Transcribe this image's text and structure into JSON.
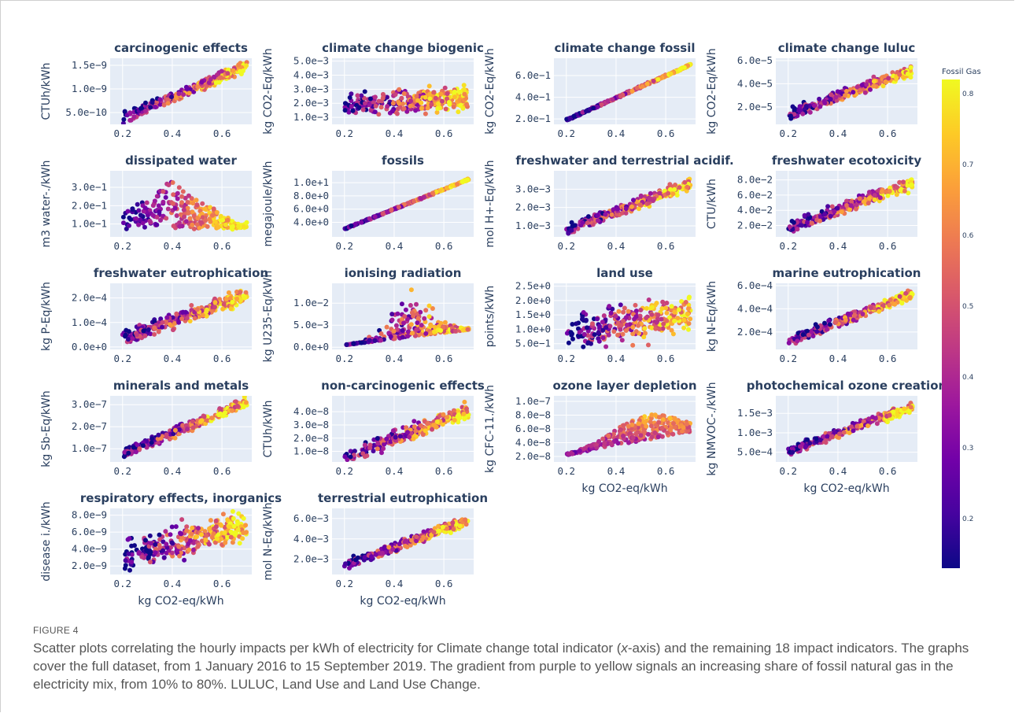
{
  "figure_label": "FIGURE 4",
  "caption": {
    "before_italic": "Scatter plots correlating the hourly impacts per kWh of electricity for Climate change total indicator (",
    "italic": "x",
    "after_italic": "-axis) and the remaining 18 impact indicators. The graphs cover the full dataset, from 1 January 2016 to 15 September 2019. The gradient from purple to yellow signals an increasing share of fossil natural gas in the electricity mix, from 10% to 80%. LULUC, Land Use and Land Use Change."
  },
  "colorbar": {
    "title": "Fossil Gas",
    "range": [
      0.13,
      0.82
    ],
    "ticks": [
      "0.2",
      "0.3",
      "0.4",
      "0.5",
      "0.6",
      "0.7",
      "0.8"
    ],
    "colorscale": [
      "#0d0887",
      "#46039f",
      "#7201a8",
      "#9c179e",
      "#bd3786",
      "#d8576b",
      "#ed7953",
      "#fb9f3a",
      "#fdca26",
      "#f0f921"
    ]
  },
  "x_axis_label": "kg CO2-eq/kWh",
  "chart_data": [
    {
      "type": "scatter",
      "title": "carcinogenic effects",
      "ylabel": "CTUh/kWh",
      "xlim": [
        0.15,
        0.72
      ],
      "ylim": [
        2.5e-10,
        1.65e-09
      ],
      "x_ticks": [
        0.2,
        0.4,
        0.6
      ],
      "y_ticks": [
        {
          "v": 5e-10,
          "label": "5.0e−10"
        },
        {
          "v": 1e-09,
          "label": "1.0e−9"
        },
        {
          "v": 1.5e-09,
          "label": "1.5e−9"
        }
      ],
      "pattern": "linear",
      "trend": [
        [
          0.2,
          3.5e-10
        ],
        [
          0.7,
          1.52e-09
        ]
      ],
      "spread": 9e-11
    },
    {
      "type": "scatter",
      "title": "climate change biogenic",
      "ylabel": "kg CO2-Eq/kWh",
      "xlim": [
        0.15,
        0.72
      ],
      "ylim": [
        0.0005,
        0.0052
      ],
      "x_ticks": [
        0.2,
        0.4,
        0.6
      ],
      "y_ticks": [
        {
          "v": 0.001,
          "label": "1.0e−3"
        },
        {
          "v": 0.002,
          "label": "2.0e−3"
        },
        {
          "v": 0.003,
          "label": "3.0e−3"
        },
        {
          "v": 0.004,
          "label": "4.0e−3"
        },
        {
          "v": 0.005,
          "label": "5.0e−3"
        }
      ],
      "pattern": "blob",
      "trend": [
        [
          0.2,
          0.0018
        ],
        [
          0.7,
          0.0024
        ]
      ],
      "spread": 0.0014
    },
    {
      "type": "scatter",
      "title": "climate change fossil",
      "ylabel": "kg CO2-Eq/kWh",
      "xlim": [
        0.15,
        0.72
      ],
      "ylim": [
        0.15,
        0.76
      ],
      "x_ticks": [
        0.2,
        0.4,
        0.6
      ],
      "y_ticks": [
        {
          "v": 0.2,
          "label": "2.0e−1"
        },
        {
          "v": 0.4,
          "label": "4.0e−1"
        },
        {
          "v": 0.6,
          "label": "6.0e−1"
        }
      ],
      "pattern": "line",
      "trend": [
        [
          0.2,
          0.19
        ],
        [
          0.7,
          0.7
        ]
      ],
      "spread": 0.004
    },
    {
      "type": "scatter",
      "title": "climate change luluc",
      "ylabel": "kg CO2-Eq/kWh",
      "xlim": [
        0.15,
        0.72
      ],
      "ylim": [
        5e-06,
        6.2e-05
      ],
      "x_ticks": [
        0.2,
        0.4,
        0.6
      ],
      "y_ticks": [
        {
          "v": 2e-05,
          "label": "2.0e−5"
        },
        {
          "v": 4e-05,
          "label": "4.0e−5"
        },
        {
          "v": 6e-05,
          "label": "6.0e−5"
        }
      ],
      "pattern": "linear",
      "trend": [
        [
          0.2,
          1.3e-05
        ],
        [
          0.7,
          5.3e-05
        ]
      ],
      "spread": 4e-06
    },
    {
      "type": "scatter",
      "title": "dissipated water",
      "ylabel": "m3 water-./kWh",
      "xlim": [
        0.15,
        0.72
      ],
      "ylim": [
        0.03,
        0.39
      ],
      "x_ticks": [
        0.2,
        0.4,
        0.6
      ],
      "y_ticks": [
        {
          "v": 0.1,
          "label": "1.0e−1"
        },
        {
          "v": 0.2,
          "label": "2.0e−1"
        },
        {
          "v": 0.3,
          "label": "3.0e−1"
        }
      ],
      "pattern": "triangle",
      "trend": [
        [
          0.2,
          0.16
        ],
        [
          0.7,
          0.1
        ]
      ],
      "spread": 0.12
    },
    {
      "type": "scatter",
      "title": "fossils",
      "ylabel": "megajoule/kWh",
      "xlim": [
        0.15,
        0.72
      ],
      "ylim": [
        1.8,
        11.8
      ],
      "x_ticks": [
        0.2,
        0.4,
        0.6
      ],
      "y_ticks": [
        {
          "v": 4,
          "label": "4.0e+0"
        },
        {
          "v": 6,
          "label": "6.0e+0"
        },
        {
          "v": 8,
          "label": "8.0e+0"
        },
        {
          "v": 10,
          "label": "1.0e+1"
        }
      ],
      "pattern": "line",
      "trend": [
        [
          0.2,
          3.0
        ],
        [
          0.7,
          10.5
        ]
      ],
      "spread": 0.05
    },
    {
      "type": "scatter",
      "title": "freshwater and terrestrial acidif.",
      "ylabel": "mol H+-Eq/kWh",
      "xlim": [
        0.15,
        0.72
      ],
      "ylim": [
        0.0004,
        0.004
      ],
      "x_ticks": [
        0.2,
        0.4,
        0.6
      ],
      "y_ticks": [
        {
          "v": 0.001,
          "label": "1.0e−3"
        },
        {
          "v": 0.002,
          "label": "2.0e−3"
        },
        {
          "v": 0.003,
          "label": "3.0e−3"
        }
      ],
      "pattern": "linear",
      "trend": [
        [
          0.2,
          0.0007
        ],
        [
          0.7,
          0.0034
        ]
      ],
      "spread": 0.00025
    },
    {
      "type": "scatter",
      "title": "freshwater ecotoxicity",
      "ylabel": "CTU/kWh",
      "xlim": [
        0.15,
        0.72
      ],
      "ylim": [
        0.005,
        0.092
      ],
      "x_ticks": [
        0.2,
        0.4,
        0.6
      ],
      "y_ticks": [
        {
          "v": 0.02,
          "label": "2.0e−2"
        },
        {
          "v": 0.04,
          "label": "4.0e−2"
        },
        {
          "v": 0.06,
          "label": "6.0e−2"
        },
        {
          "v": 0.08,
          "label": "8.0e−2"
        }
      ],
      "pattern": "linear",
      "trend": [
        [
          0.2,
          0.015
        ],
        [
          0.7,
          0.078
        ]
      ],
      "spread": 0.006
    },
    {
      "type": "scatter",
      "title": "freshwater eutrophication",
      "ylabel": "kg P-Eq/kWh",
      "xlim": [
        0.15,
        0.72
      ],
      "ylim": [
        -1e-05,
        0.00026
      ],
      "x_ticks": [
        0.2,
        0.4,
        0.6
      ],
      "y_ticks": [
        {
          "v": 0,
          "label": "0.0e+0"
        },
        {
          "v": 0.0001,
          "label": "1.0e−4"
        },
        {
          "v": 0.0002,
          "label": "2.0e−4"
        }
      ],
      "pattern": "linear",
      "trend": [
        [
          0.2,
          3e-05
        ],
        [
          0.7,
          0.00022
        ]
      ],
      "spread": 2.5e-05
    },
    {
      "type": "scatter",
      "title": "ionising radiation",
      "ylabel": "kg U235-Eq/kWh",
      "xlim": [
        0.15,
        0.72
      ],
      "ylim": [
        -0.0005,
        0.0145
      ],
      "x_ticks": [
        0.2,
        0.4,
        0.6
      ],
      "y_ticks": [
        {
          "v": 0,
          "label": "0.0e+0"
        },
        {
          "v": 0.005,
          "label": "5.0e−3"
        },
        {
          "v": 0.01,
          "label": "1.0e−2"
        }
      ],
      "pattern": "spike",
      "trend": [
        [
          0.2,
          0.0005
        ],
        [
          0.7,
          0.004
        ]
      ],
      "spread": 0.011
    },
    {
      "type": "scatter",
      "title": "land use",
      "ylabel": "points/kWh",
      "xlim": [
        0.15,
        0.72
      ],
      "ylim": [
        0.3,
        2.6
      ],
      "x_ticks": [
        0.2,
        0.4,
        0.6
      ],
      "y_ticks": [
        {
          "v": 0.5,
          "label": "5.0e−1"
        },
        {
          "v": 1.0,
          "label": "1.0e+0"
        },
        {
          "v": 1.5,
          "label": "1.5e+0"
        },
        {
          "v": 2.0,
          "label": "2.0e+0"
        },
        {
          "v": 2.5,
          "label": "2.5e+0"
        }
      ],
      "pattern": "blob",
      "trend": [
        [
          0.2,
          0.9
        ],
        [
          0.7,
          1.6
        ]
      ],
      "spread": 1.0
    },
    {
      "type": "scatter",
      "title": "marine eutrophication",
      "ylabel": "kg N-Eq/kWh",
      "xlim": [
        0.15,
        0.72
      ],
      "ylim": [
        5e-05,
        0.00062
      ],
      "x_ticks": [
        0.2,
        0.4,
        0.6
      ],
      "y_ticks": [
        {
          "v": 0.0002,
          "label": "2.0e−4"
        },
        {
          "v": 0.0004,
          "label": "4.0e−4"
        },
        {
          "v": 0.0006,
          "label": "6.0e−4"
        }
      ],
      "pattern": "linear",
      "trend": [
        [
          0.2,
          0.00011
        ],
        [
          0.7,
          0.00054
        ]
      ],
      "spread": 3.5e-05
    },
    {
      "type": "scatter",
      "title": "minerals and metals",
      "ylabel": "kg Sb-Eq/kWh",
      "xlim": [
        0.15,
        0.72
      ],
      "ylim": [
        4e-08,
        3.4e-07
      ],
      "x_ticks": [
        0.2,
        0.4,
        0.6
      ],
      "y_ticks": [
        {
          "v": 1e-07,
          "label": "1.0e−7"
        },
        {
          "v": 2e-07,
          "label": "2.0e−7"
        },
        {
          "v": 3e-07,
          "label": "3.0e−7"
        }
      ],
      "pattern": "linear",
      "trend": [
        [
          0.2,
          7e-08
        ],
        [
          0.7,
          3.2e-07
        ]
      ],
      "spread": 2e-08
    },
    {
      "type": "scatter",
      "title": "non-carcinogenic effects",
      "ylabel": "CTUh/kWh",
      "xlim": [
        0.15,
        0.72
      ],
      "ylim": [
        2e-09,
        5.2e-08
      ],
      "x_ticks": [
        0.2,
        0.4,
        0.6
      ],
      "y_ticks": [
        {
          "v": 1e-08,
          "label": "1.0e−8"
        },
        {
          "v": 2e-08,
          "label": "2.0e−8"
        },
        {
          "v": 3e-08,
          "label": "3.0e−8"
        },
        {
          "v": 4e-08,
          "label": "4.0e−8"
        }
      ],
      "pattern": "linear",
      "trend": [
        [
          0.2,
          4e-09
        ],
        [
          0.7,
          4.3e-08
        ]
      ],
      "spread": 5e-09
    },
    {
      "type": "scatter",
      "title": "ozone layer depletion",
      "ylabel": "kg CFC-11./kWh",
      "xlim": [
        0.15,
        0.72
      ],
      "ylim": [
        1.2e-08,
        1.08e-07
      ],
      "x_ticks": [
        0.2,
        0.4,
        0.6
      ],
      "y_ticks": [
        {
          "v": 2e-08,
          "label": "2.0e−8"
        },
        {
          "v": 4e-08,
          "label": "4.0e−8"
        },
        {
          "v": 6e-08,
          "label": "6.0e−8"
        },
        {
          "v": 8e-08,
          "label": "8.0e−8"
        },
        {
          "v": 1e-07,
          "label": "1.0e−7"
        }
      ],
      "pattern": "mound",
      "trend": [
        [
          0.2,
          2.8e-08
        ],
        [
          0.7,
          6.2e-08
        ]
      ],
      "spread": 3.6e-08
    },
    {
      "type": "scatter",
      "title": "photochemical ozone creation",
      "ylabel": "kg NMVOC-./kWh",
      "xlim": [
        0.15,
        0.72
      ],
      "ylim": [
        0.00025,
        0.00195
      ],
      "x_ticks": [
        0.2,
        0.4,
        0.6
      ],
      "y_ticks": [
        {
          "v": 0.0005,
          "label": "5.0e−4"
        },
        {
          "v": 0.001,
          "label": "1.0e−3"
        },
        {
          "v": 0.0015,
          "label": "1.5e−3"
        }
      ],
      "pattern": "linear",
      "trend": [
        [
          0.2,
          0.0005
        ],
        [
          0.7,
          0.0017
        ]
      ],
      "spread": 0.0001
    },
    {
      "type": "scatter",
      "title": "respiratory effects, inorganics",
      "ylabel": "disease i./kWh",
      "xlim": [
        0.15,
        0.72
      ],
      "ylim": [
        1e-09,
        8.8e-09
      ],
      "x_ticks": [
        0.2,
        0.4,
        0.6
      ],
      "y_ticks": [
        {
          "v": 2e-09,
          "label": "2.0e−9"
        },
        {
          "v": 4e-09,
          "label": "4.0e−9"
        },
        {
          "v": 6e-09,
          "label": "6.0e−9"
        },
        {
          "v": 8e-09,
          "label": "8.0e−9"
        }
      ],
      "pattern": "blob",
      "trend": [
        [
          0.2,
          3.2e-09
        ],
        [
          0.7,
          6.8e-09
        ]
      ],
      "spread": 3.2e-09
    },
    {
      "type": "scatter",
      "title": "terrestrial eutrophication",
      "ylabel": "mol N-Eq/kWh",
      "xlim": [
        0.15,
        0.72
      ],
      "ylim": [
        0.0005,
        0.007
      ],
      "x_ticks": [
        0.2,
        0.4,
        0.6
      ],
      "y_ticks": [
        {
          "v": 0.002,
          "label": "2.0e−3"
        },
        {
          "v": 0.004,
          "label": "4.0e−3"
        },
        {
          "v": 0.006,
          "label": "6.0e−3"
        }
      ],
      "pattern": "linear",
      "trend": [
        [
          0.2,
          0.0013
        ],
        [
          0.7,
          0.006
        ]
      ],
      "spread": 0.0004
    }
  ]
}
